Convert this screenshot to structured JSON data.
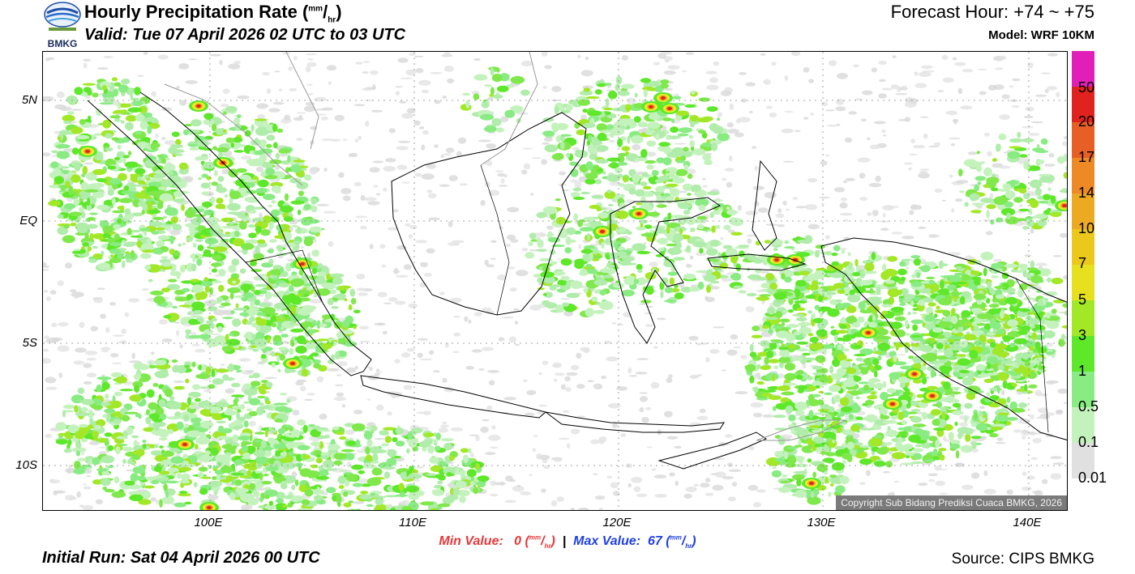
{
  "header": {
    "logo_text": "BMKG",
    "title_main": "Hourly Precipitation Rate (",
    "title_unit_num": "mm",
    "title_unit_sep": "/",
    "title_unit_den": "hr",
    "title_close": ")",
    "valid": "Valid: Tue 07 April 2026 02 UTC to 03 UTC",
    "forecast_hour": "Forecast Hour: +74 ~ +75",
    "model": "Model: WRF 10KM"
  },
  "map": {
    "lat_labels": [
      "5N",
      "EQ",
      "5S",
      "10S"
    ],
    "lon_labels": [
      "100E",
      "110E",
      "120E",
      "130E",
      "140E"
    ],
    "copyright": "Copyright Sub Bidang Prediksi Cuaca BMKG, 2026"
  },
  "legend": {
    "labels": [
      "50",
      "20",
      "17",
      "14",
      "10",
      "7",
      "5",
      "3",
      "1",
      "0.5",
      "0.1",
      "0.01"
    ],
    "colors": [
      "#e11fb8",
      "#e0231f",
      "#e85f25",
      "#ed8a25",
      "#eca922",
      "#ecc81d",
      "#e6e01e",
      "#ecf029",
      "#a2e827",
      "#5ee82a",
      "#88ec82",
      "#c4f2bc",
      "#e0e0e0"
    ]
  },
  "footer": {
    "min_label": "Min Value:",
    "min_value": "0",
    "sep": "|",
    "max_label": "Max Value:",
    "max_value": "67",
    "unit_num": "mm",
    "unit_den": "hr",
    "initial_run": "Initial Run: Sat 04 April 2026 00 UTC",
    "source": "Source: CIPS BMKG"
  }
}
